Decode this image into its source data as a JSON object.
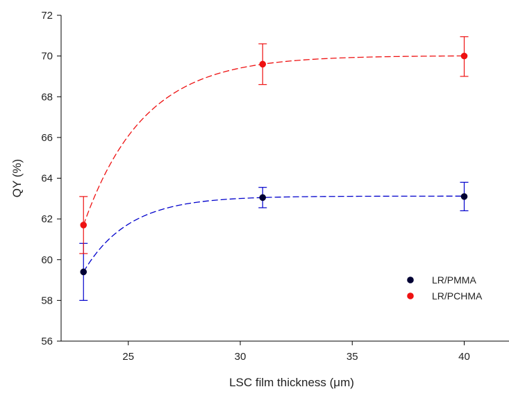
{
  "chart_data": {
    "type": "scatter",
    "title": "",
    "xlabel": "LSC film thickness (μm)",
    "ylabel": "QY (%)",
    "xlim": [
      22,
      42
    ],
    "ylim": [
      56,
      72
    ],
    "xticks": [
      25,
      30,
      35,
      40
    ],
    "yticks": [
      56,
      58,
      60,
      62,
      64,
      66,
      68,
      70,
      72
    ],
    "grid": false,
    "legend_position": "lower-right",
    "series": [
      {
        "name": "LR/PMMA",
        "color": "#0000cc",
        "marker_color": "#000033",
        "x": [
          23,
          31,
          40
        ],
        "y": [
          59.4,
          63.05,
          63.1
        ],
        "err_low": [
          1.4,
          0.5,
          0.7
        ],
        "err_high": [
          1.4,
          0.5,
          0.7
        ],
        "fit": "dashed exponential rise to max"
      },
      {
        "name": "LR/PCHMA",
        "color": "#ee1111",
        "marker_color": "#ee1111",
        "x": [
          23,
          31,
          40
        ],
        "y": [
          61.7,
          69.6,
          70.0
        ],
        "err_low": [
          1.4,
          1.0,
          1.0
        ],
        "err_high": [
          1.4,
          1.0,
          0.95
        ],
        "fit": "dashed exponential rise to max"
      }
    ]
  }
}
